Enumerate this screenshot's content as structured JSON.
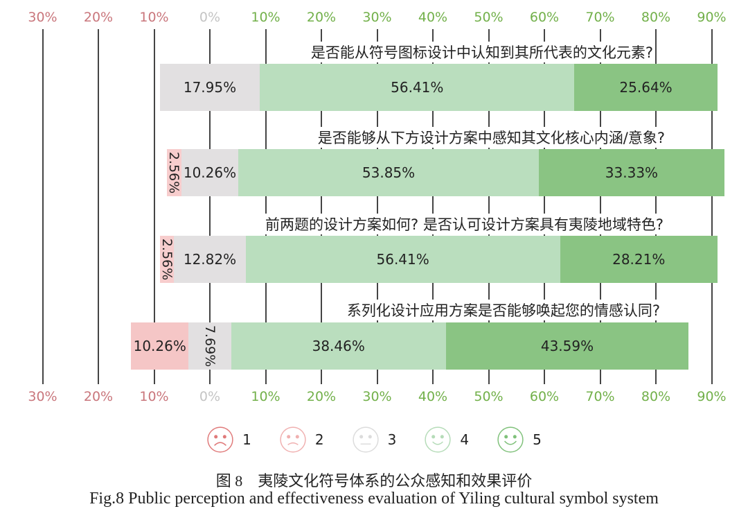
{
  "chart_data": {
    "type": "bar",
    "subtype": "diverging-stacked-horizontal",
    "title": "图 8 夷陵文化符号体系的公众感知和效果评价",
    "subtitle": "Fig.8 Public perception and effectiveness evaluation of Yiling cultural symbol system",
    "xlabel": "",
    "ylabel": "",
    "x_ticks_negative": [
      "30%",
      "20%",
      "10%"
    ],
    "x_tick_zero": "0%",
    "x_ticks_positive": [
      "10%",
      "20%",
      "30%",
      "40%",
      "50%",
      "60%",
      "70%",
      "80%",
      "90%"
    ],
    "xlim": [
      -30,
      90
    ],
    "grid": true,
    "legend_position": "bottom",
    "legend": [
      {
        "label": "1",
        "icon": "very-sad-face-icon",
        "color": "#e07a7a"
      },
      {
        "label": "2",
        "icon": "sad-face-icon",
        "color": "#f0b0b0"
      },
      {
        "label": "3",
        "icon": "neutral-face-icon",
        "color": "#dcdcdc"
      },
      {
        "label": "4",
        "icon": "smile-face-icon",
        "color": "#b5dcb8"
      },
      {
        "label": "5",
        "icon": "happy-face-icon",
        "color": "#7fc17a"
      }
    ],
    "categories": [
      "是否能从符号图标设计中认知到其所代表的文化元素?",
      "是否能够从下方设计方案中感知其文化核心内涵/意象?",
      "前两题的设计方案如何? 是否认可设计方案具有夷陵地域特色?",
      "系列化设计应用方案是否能够唤起您的情感认同?"
    ],
    "series": [
      {
        "name": "1",
        "values": [
          0,
          0,
          0,
          10.26
        ],
        "labels": [
          "",
          "",
          "",
          "10.26%"
        ]
      },
      {
        "name": "2",
        "values": [
          0,
          2.56,
          2.56,
          0
        ],
        "labels": [
          "",
          "2.56%",
          "2.56%",
          ""
        ]
      },
      {
        "name": "3",
        "values": [
          17.95,
          10.26,
          12.82,
          7.69
        ],
        "labels": [
          "17.95%",
          "10.26%",
          "12.82%",
          "7.69%"
        ]
      },
      {
        "name": "4",
        "values": [
          56.41,
          53.85,
          56.41,
          38.46
        ],
        "labels": [
          "56.41%",
          "53.85%",
          "56.41%",
          "38.46%"
        ]
      },
      {
        "name": "5",
        "values": [
          25.64,
          33.33,
          28.21,
          43.59
        ],
        "labels": [
          "25.64%",
          "33.33%",
          "28.21%",
          "43.59%"
        ]
      }
    ]
  },
  "caption": {
    "cn": "图 8　夷陵文化符号体系的公众感知和效果评价",
    "en": "Fig.8 Public perception and effectiveness evaluation of Yiling cultural symbol system"
  }
}
